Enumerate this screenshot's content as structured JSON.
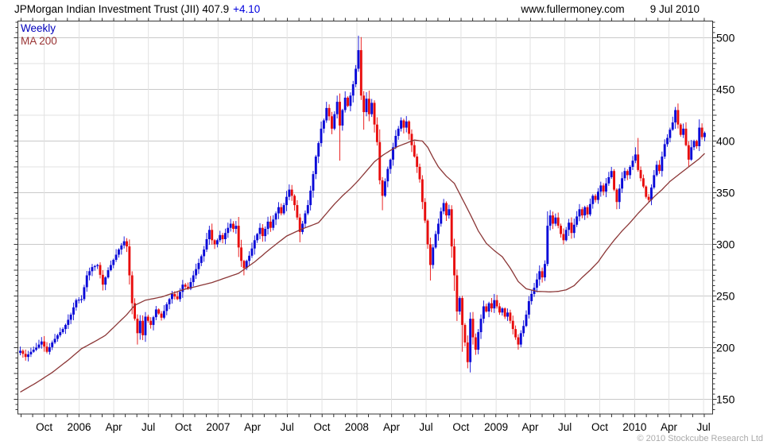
{
  "header": {
    "title": "JPMorgan Indian Investment Trust (JII) 407.9",
    "change": "+4.10",
    "website": "www.fullermoney.com",
    "date": "9 Jul 2010"
  },
  "legend": {
    "series_label": "Weekly",
    "ma_label": "MA 200"
  },
  "footer": {
    "copyright": "© 2010 Stockcube Research Ltd"
  },
  "colors": {
    "up": "#0a0ad8",
    "down": "#e80d0d",
    "ma": "#8b3636",
    "grid_minor": "#e2e2e2",
    "grid_major": "#c9c9c9",
    "axis": "#333333",
    "legend_series": "#0000bb",
    "legend_ma": "#993333",
    "change": "#0000dd",
    "copyright": "#aaaaaa"
  },
  "chart_data": {
    "type": "candlestick",
    "title": "JPMorgan Indian Investment Trust (JII) weekly candles with MA 200",
    "last_close": 407.9,
    "weeks": 258,
    "ylabel": "",
    "y_ticks": [
      150,
      200,
      250,
      300,
      350,
      400,
      450,
      500
    ],
    "y_grid_step": 25,
    "ylim": [
      136,
      516
    ],
    "x_ticks": [
      {
        "week": 9.0,
        "label": "Oct"
      },
      {
        "week": 22.1,
        "label": "2006"
      },
      {
        "week": 35.1,
        "label": "Apr"
      },
      {
        "week": 48.1,
        "label": "Jul"
      },
      {
        "week": 61.2,
        "label": "Oct"
      },
      {
        "week": 74.3,
        "label": "2007"
      },
      {
        "week": 87.2,
        "label": "Apr"
      },
      {
        "week": 100.2,
        "label": "Jul"
      },
      {
        "week": 113.3,
        "label": "Oct"
      },
      {
        "week": 126.4,
        "label": "2008"
      },
      {
        "week": 139.4,
        "label": "Apr"
      },
      {
        "week": 152.4,
        "label": "Jul"
      },
      {
        "week": 165.5,
        "label": "Oct"
      },
      {
        "week": 178.7,
        "label": "2009"
      },
      {
        "week": 191.5,
        "label": "Apr"
      },
      {
        "week": 204.5,
        "label": "Jul"
      },
      {
        "week": 217.6,
        "label": "Oct"
      },
      {
        "week": 230.7,
        "label": "2010"
      },
      {
        "week": 243.6,
        "label": "Apr"
      },
      {
        "week": 256.6,
        "label": "Jul"
      }
    ],
    "close_anchors": [
      [
        0,
        197
      ],
      [
        2,
        191
      ],
      [
        4,
        196
      ],
      [
        6,
        200
      ],
      [
        8,
        206
      ],
      [
        10,
        196
      ],
      [
        12,
        205
      ],
      [
        14,
        212
      ],
      [
        16,
        218
      ],
      [
        17,
        222
      ],
      [
        19,
        232
      ],
      [
        21,
        246
      ],
      [
        23,
        247
      ],
      [
        25,
        270
      ],
      [
        27,
        278
      ],
      [
        29,
        280
      ],
      [
        31,
        261
      ],
      [
        33,
        275
      ],
      [
        35,
        285
      ],
      [
        37,
        295
      ],
      [
        39,
        303
      ],
      [
        40,
        298
      ],
      [
        41,
        270
      ],
      [
        42,
        243
      ],
      [
        43,
        228
      ],
      [
        44,
        214
      ],
      [
        45,
        226
      ],
      [
        46,
        212
      ],
      [
        47,
        230
      ],
      [
        49,
        222
      ],
      [
        51,
        237
      ],
      [
        53,
        229
      ],
      [
        55,
        242
      ],
      [
        57,
        252
      ],
      [
        59,
        247
      ],
      [
        61,
        261
      ],
      [
        63,
        257
      ],
      [
        65,
        270
      ],
      [
        67,
        282
      ],
      [
        69,
        295
      ],
      [
        70,
        305
      ],
      [
        71,
        314
      ],
      [
        72,
        304
      ],
      [
        73,
        300
      ],
      [
        74,
        304
      ],
      [
        75,
        309
      ],
      [
        76,
        305
      ],
      [
        77,
        311
      ],
      [
        78,
        316
      ],
      [
        79,
        320
      ],
      [
        80,
        315
      ],
      [
        81,
        318
      ],
      [
        82,
        297
      ],
      [
        83,
        284
      ],
      [
        84,
        277
      ],
      [
        85,
        284
      ],
      [
        86,
        289
      ],
      [
        87,
        296
      ],
      [
        88,
        304
      ],
      [
        89,
        310
      ],
      [
        90,
        316
      ],
      [
        91,
        308
      ],
      [
        92,
        315
      ],
      [
        93,
        322
      ],
      [
        94,
        316
      ],
      [
        95,
        324
      ],
      [
        96,
        330
      ],
      [
        97,
        336
      ],
      [
        98,
        330
      ],
      [
        99,
        338
      ],
      [
        100,
        346
      ],
      [
        101,
        353
      ],
      [
        102,
        347
      ],
      [
        103,
        338
      ],
      [
        104,
        326
      ],
      [
        105,
        312
      ],
      [
        106,
        320
      ],
      [
        107,
        330
      ],
      [
        108,
        338
      ],
      [
        109,
        352
      ],
      [
        110,
        368
      ],
      [
        111,
        385
      ],
      [
        112,
        398
      ],
      [
        113,
        412
      ],
      [
        114,
        420
      ],
      [
        115,
        432
      ],
      [
        116,
        424
      ],
      [
        117,
        412
      ],
      [
        118,
        426
      ],
      [
        119,
        438
      ],
      [
        120,
        415
      ],
      [
        121,
        430
      ],
      [
        122,
        442
      ],
      [
        123,
        434
      ],
      [
        124,
        444
      ],
      [
        125,
        455
      ],
      [
        126,
        470
      ],
      [
        127,
        488
      ],
      [
        128,
        444
      ],
      [
        129,
        428
      ],
      [
        130,
        441
      ],
      [
        131,
        426
      ],
      [
        132,
        437
      ],
      [
        133,
        416
      ],
      [
        134,
        399
      ],
      [
        135,
        362
      ],
      [
        136,
        347
      ],
      [
        137,
        361
      ],
      [
        138,
        373
      ],
      [
        139,
        382
      ],
      [
        140,
        394
      ],
      [
        141,
        405
      ],
      [
        142,
        412
      ],
      [
        143,
        420
      ],
      [
        144,
        413
      ],
      [
        145,
        419
      ],
      [
        146,
        407
      ],
      [
        147,
        396
      ],
      [
        148,
        385
      ],
      [
        149,
        375
      ],
      [
        150,
        363
      ],
      [
        151,
        341
      ],
      [
        152,
        323
      ],
      [
        153,
        300
      ],
      [
        154,
        280
      ],
      [
        155,
        297
      ],
      [
        156,
        310
      ],
      [
        157,
        320
      ],
      [
        158,
        332
      ],
      [
        159,
        340
      ],
      [
        160,
        328
      ],
      [
        161,
        334
      ],
      [
        162,
        298
      ],
      [
        163,
        270
      ],
      [
        164,
        235
      ],
      [
        165,
        248
      ],
      [
        166,
        222
      ],
      [
        167,
        205
      ],
      [
        168,
        186
      ],
      [
        169,
        228
      ],
      [
        170,
        210
      ],
      [
        171,
        198
      ],
      [
        172,
        215
      ],
      [
        173,
        228
      ],
      [
        174,
        240
      ],
      [
        175,
        235
      ],
      [
        176,
        243
      ],
      [
        177,
        238
      ],
      [
        178,
        246
      ],
      [
        179,
        240
      ],
      [
        180,
        234
      ],
      [
        181,
        238
      ],
      [
        182,
        230
      ],
      [
        183,
        234
      ],
      [
        184,
        226
      ],
      [
        185,
        218
      ],
      [
        186,
        210
      ],
      [
        187,
        203
      ],
      [
        188,
        214
      ],
      [
        189,
        221
      ],
      [
        190,
        232
      ],
      [
        191,
        245
      ],
      [
        192,
        252
      ],
      [
        193,
        258
      ],
      [
        194,
        266
      ],
      [
        195,
        274
      ],
      [
        196,
        268
      ],
      [
        197,
        281
      ],
      [
        198,
        318
      ],
      [
        199,
        328
      ],
      [
        200,
        320
      ],
      [
        201,
        326
      ],
      [
        202,
        318
      ],
      [
        203,
        310
      ],
      [
        204,
        304
      ],
      [
        205,
        314
      ],
      [
        206,
        321
      ],
      [
        207,
        311
      ],
      [
        208,
        319
      ],
      [
        209,
        327
      ],
      [
        210,
        334
      ],
      [
        211,
        328
      ],
      [
        212,
        336
      ],
      [
        213,
        329
      ],
      [
        214,
        339
      ],
      [
        215,
        347
      ],
      [
        216,
        343
      ],
      [
        217,
        351
      ],
      [
        218,
        357
      ],
      [
        219,
        351
      ],
      [
        220,
        359
      ],
      [
        221,
        365
      ],
      [
        222,
        371
      ],
      [
        223,
        353
      ],
      [
        224,
        341
      ],
      [
        225,
        354
      ],
      [
        226,
        364
      ],
      [
        227,
        371
      ],
      [
        228,
        367
      ],
      [
        229,
        375
      ],
      [
        230,
        381
      ],
      [
        231,
        387
      ],
      [
        232,
        372
      ],
      [
        233,
        364
      ],
      [
        234,
        356
      ],
      [
        235,
        346
      ],
      [
        236,
        343
      ],
      [
        237,
        355
      ],
      [
        238,
        367
      ],
      [
        239,
        377
      ],
      [
        240,
        371
      ],
      [
        241,
        385
      ],
      [
        242,
        397
      ],
      [
        243,
        403
      ],
      [
        244,
        411
      ],
      [
        245,
        418
      ],
      [
        246,
        430
      ],
      [
        247,
        416
      ],
      [
        248,
        406
      ],
      [
        249,
        412
      ],
      [
        250,
        396
      ],
      [
        251,
        382
      ],
      [
        252,
        394
      ],
      [
        253,
        400
      ],
      [
        254,
        395
      ],
      [
        255,
        413
      ],
      [
        256,
        403.8
      ],
      [
        257,
        407.9
      ]
    ],
    "wick_overrides": [
      [
        40,
        "h",
        306
      ],
      [
        44,
        "l",
        203
      ],
      [
        71,
        "h",
        318
      ],
      [
        84,
        "l",
        270
      ],
      [
        101,
        "h",
        358
      ],
      [
        105,
        "l",
        302
      ],
      [
        115,
        "h",
        438
      ],
      [
        119,
        "h",
        444
      ],
      [
        120,
        "l",
        381
      ],
      [
        127,
        "h",
        502
      ],
      [
        129,
        "l",
        411
      ],
      [
        136,
        "l",
        333
      ],
      [
        143,
        "h",
        423
      ],
      [
        154,
        "l",
        265
      ],
      [
        159,
        "h",
        344
      ],
      [
        163,
        "l",
        255
      ],
      [
        166,
        "l",
        196
      ],
      [
        168,
        "l",
        180
      ],
      [
        169,
        "l",
        176
      ],
      [
        171,
        "l",
        193
      ],
      [
        178,
        "h",
        252
      ],
      [
        187,
        "l",
        198
      ],
      [
        198,
        "h",
        332
      ],
      [
        222,
        "h",
        375
      ],
      [
        224,
        "l",
        334
      ],
      [
        231,
        "h",
        394
      ],
      [
        232,
        "h",
        403
      ],
      [
        236,
        "l",
        341
      ],
      [
        246,
        "h",
        433
      ],
      [
        251,
        "l",
        375
      ],
      [
        255,
        "h",
        421
      ]
    ],
    "ma_anchors": [
      [
        0,
        157
      ],
      [
        6,
        166
      ],
      [
        12,
        176
      ],
      [
        18,
        188
      ],
      [
        23,
        199
      ],
      [
        28,
        206
      ],
      [
        32,
        212
      ],
      [
        36,
        222
      ],
      [
        40,
        232
      ],
      [
        43,
        241
      ],
      [
        47,
        246
      ],
      [
        53,
        249
      ],
      [
        61,
        256
      ],
      [
        72,
        263
      ],
      [
        82,
        272
      ],
      [
        88,
        283
      ],
      [
        94,
        296
      ],
      [
        100,
        308
      ],
      [
        105,
        314
      ],
      [
        109,
        318
      ],
      [
        112,
        321
      ],
      [
        115,
        330
      ],
      [
        118,
        339
      ],
      [
        121,
        347
      ],
      [
        124,
        354
      ],
      [
        127,
        362
      ],
      [
        130,
        371
      ],
      [
        133,
        380
      ],
      [
        136,
        386
      ],
      [
        139,
        391
      ],
      [
        142,
        395
      ],
      [
        145,
        398
      ],
      [
        148,
        401
      ],
      [
        151,
        400
      ],
      [
        153,
        394
      ],
      [
        155,
        384
      ],
      [
        157,
        375
      ],
      [
        160,
        366
      ],
      [
        163,
        359
      ],
      [
        166,
        344
      ],
      [
        169,
        329
      ],
      [
        172,
        313
      ],
      [
        175,
        301
      ],
      [
        178,
        294
      ],
      [
        181,
        288
      ],
      [
        184,
        277
      ],
      [
        187,
        264
      ],
      [
        190,
        257
      ],
      [
        194,
        254.5
      ],
      [
        199,
        254
      ],
      [
        202,
        254.5
      ],
      [
        205,
        256
      ],
      [
        208,
        260
      ],
      [
        211,
        268
      ],
      [
        214,
        275
      ],
      [
        217,
        283
      ],
      [
        220,
        294
      ],
      [
        223,
        304
      ],
      [
        226,
        313
      ],
      [
        229,
        321
      ],
      [
        232,
        330
      ],
      [
        235,
        338
      ],
      [
        238,
        346
      ],
      [
        241,
        353
      ],
      [
        244,
        361
      ],
      [
        247,
        367
      ],
      [
        250,
        373
      ],
      [
        253,
        379
      ],
      [
        255,
        383
      ],
      [
        257,
        388
      ]
    ]
  }
}
